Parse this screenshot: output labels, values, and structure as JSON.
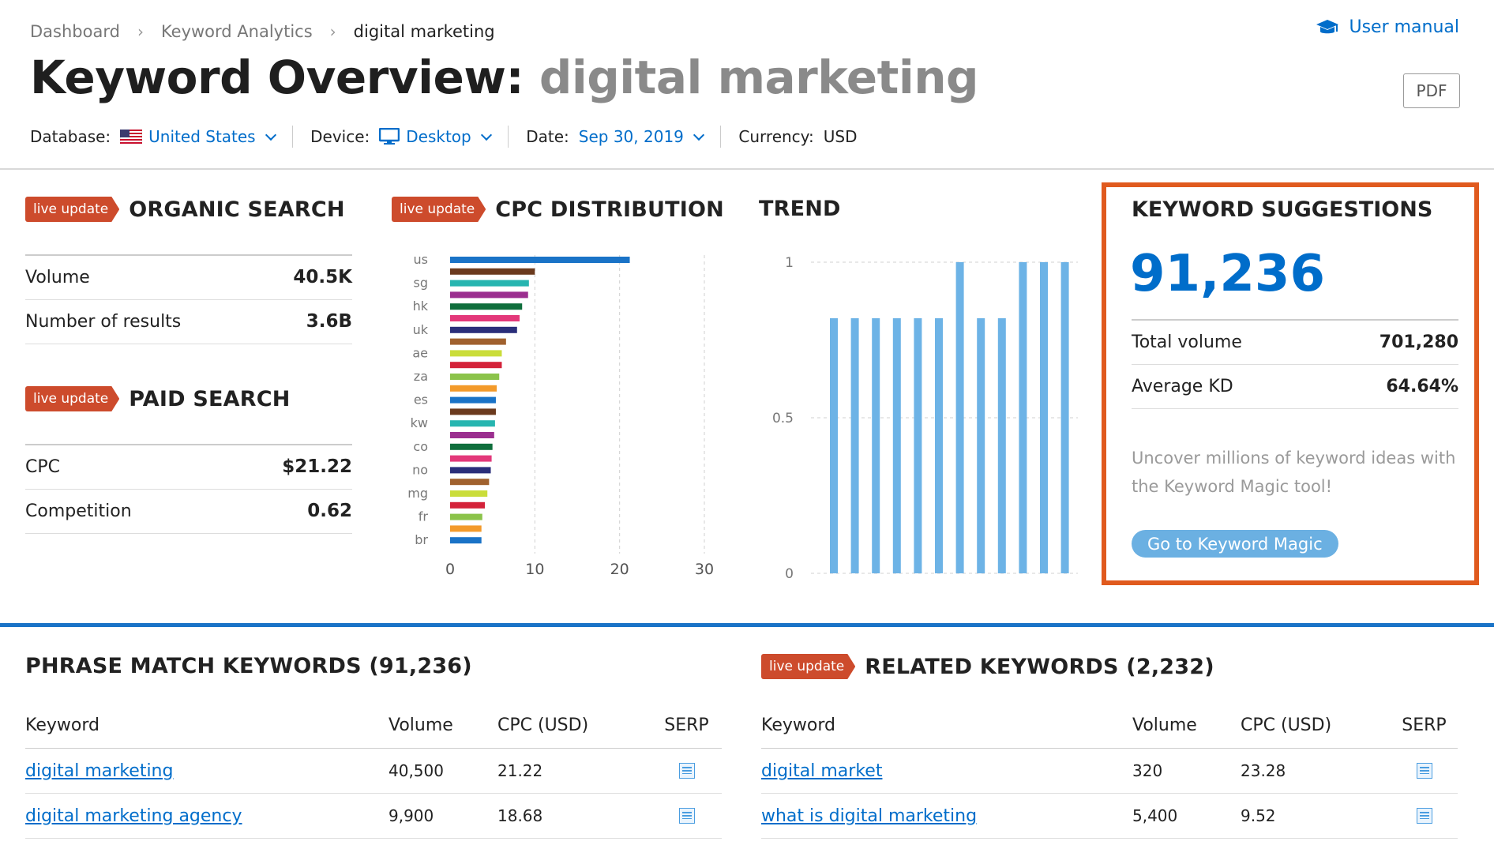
{
  "breadcrumb": {
    "items": [
      "Dashboard",
      "Keyword Analytics",
      "digital marketing"
    ]
  },
  "header": {
    "user_manual": "User manual",
    "title_prefix": "Keyword Overview:",
    "title_keyword": "digital marketing",
    "pdf_label": "PDF"
  },
  "filters": {
    "database_label": "Database:",
    "database_value": "United States",
    "device_label": "Device:",
    "device_value": "Desktop",
    "date_label": "Date:",
    "date_value": "Sep 30, 2019",
    "currency_label": "Currency:",
    "currency_value": "USD"
  },
  "badge_label": "live update",
  "organic": {
    "title": "ORGANIC SEARCH",
    "rows": [
      {
        "label": "Volume",
        "value": "40.5K"
      },
      {
        "label": "Number of results",
        "value": "3.6B"
      }
    ]
  },
  "paid": {
    "title": "PAID SEARCH",
    "rows": [
      {
        "label": "CPC",
        "value": "$21.22"
      },
      {
        "label": "Competition",
        "value": "0.62"
      }
    ]
  },
  "cpc_distribution": {
    "title": "CPC DISTRIBUTION"
  },
  "trend": {
    "title": "TREND"
  },
  "suggestions": {
    "title": "KEYWORD SUGGESTIONS",
    "count": "91,236",
    "rows": [
      {
        "label": "Total volume",
        "value": "701,280"
      },
      {
        "label": "Average KD",
        "value": "64.64%"
      }
    ],
    "description": "Uncover millions of keyword ideas with the Keyword Magic tool!",
    "button": "Go to Keyword Magic"
  },
  "chart_data": [
    {
      "type": "bar",
      "orientation": "horizontal",
      "categories": [
        "us",
        "",
        "sg",
        "",
        "hk",
        "",
        "uk",
        "",
        "ae",
        "",
        "za",
        "",
        "es",
        "",
        "kw",
        "",
        "co",
        "",
        "no",
        "",
        "mg",
        "",
        "fr",
        "",
        "br"
      ],
      "values": [
        21.2,
        10,
        9.3,
        9.2,
        8.5,
        8.2,
        7.9,
        6.6,
        6.1,
        6.1,
        5.8,
        5.5,
        5.4,
        5.4,
        5.3,
        5.2,
        5.0,
        4.9,
        4.8,
        4.6,
        4.4,
        4.1,
        3.8,
        3.7,
        3.7
      ],
      "colors": [
        "#1a73c7",
        "#6b3a1e",
        "#26b5b0",
        "#9b2f8f",
        "#0f6e3c",
        "#e3387a",
        "#2a2e7a",
        "#a0612e",
        "#cadd3a",
        "#d4223a",
        "#8bc34a",
        "#f39a2a",
        "#1a73c7",
        "#6b3a1e",
        "#26b5b0",
        "#9b2f8f",
        "#0f6e3c",
        "#e3387a",
        "#2a2e7a",
        "#a0612e",
        "#cadd3a",
        "#d4223a",
        "#8bc34a",
        "#f39a2a",
        "#1a73c7"
      ],
      "xticks": [
        0,
        10,
        20,
        30
      ],
      "xlim": [
        0,
        30
      ],
      "grid": "vertical dashed"
    },
    {
      "type": "bar",
      "x": [
        1,
        2,
        3,
        4,
        5,
        6,
        7,
        8,
        9,
        10,
        11,
        12
      ],
      "values": [
        0.82,
        0.82,
        0.82,
        0.82,
        0.82,
        0.82,
        1.0,
        0.82,
        0.82,
        1.0,
        1.0,
        1.0
      ],
      "yticks": [
        "1",
        "0.5",
        "0"
      ],
      "ylim": [
        0,
        1
      ],
      "color": "#6db3e6",
      "grid": "horizontal dashed"
    }
  ],
  "phrase_match": {
    "title": "PHRASE MATCH KEYWORDS (91,236)",
    "columns": [
      "Keyword",
      "Volume",
      "CPC (USD)",
      "SERP"
    ],
    "rows": [
      {
        "keyword": "digital marketing",
        "volume": "40,500",
        "cpc": "21.22"
      },
      {
        "keyword": "digital marketing agency",
        "volume": "9,900",
        "cpc": "18.68"
      }
    ]
  },
  "related": {
    "title": "RELATED KEYWORDS (2,232)",
    "columns": [
      "Keyword",
      "Volume",
      "CPC (USD)",
      "SERP"
    ],
    "rows": [
      {
        "keyword": "digital market",
        "volume": "320",
        "cpc": "23.28"
      },
      {
        "keyword": "what is digital marketing",
        "volume": "5,400",
        "cpc": "9.52"
      }
    ]
  }
}
